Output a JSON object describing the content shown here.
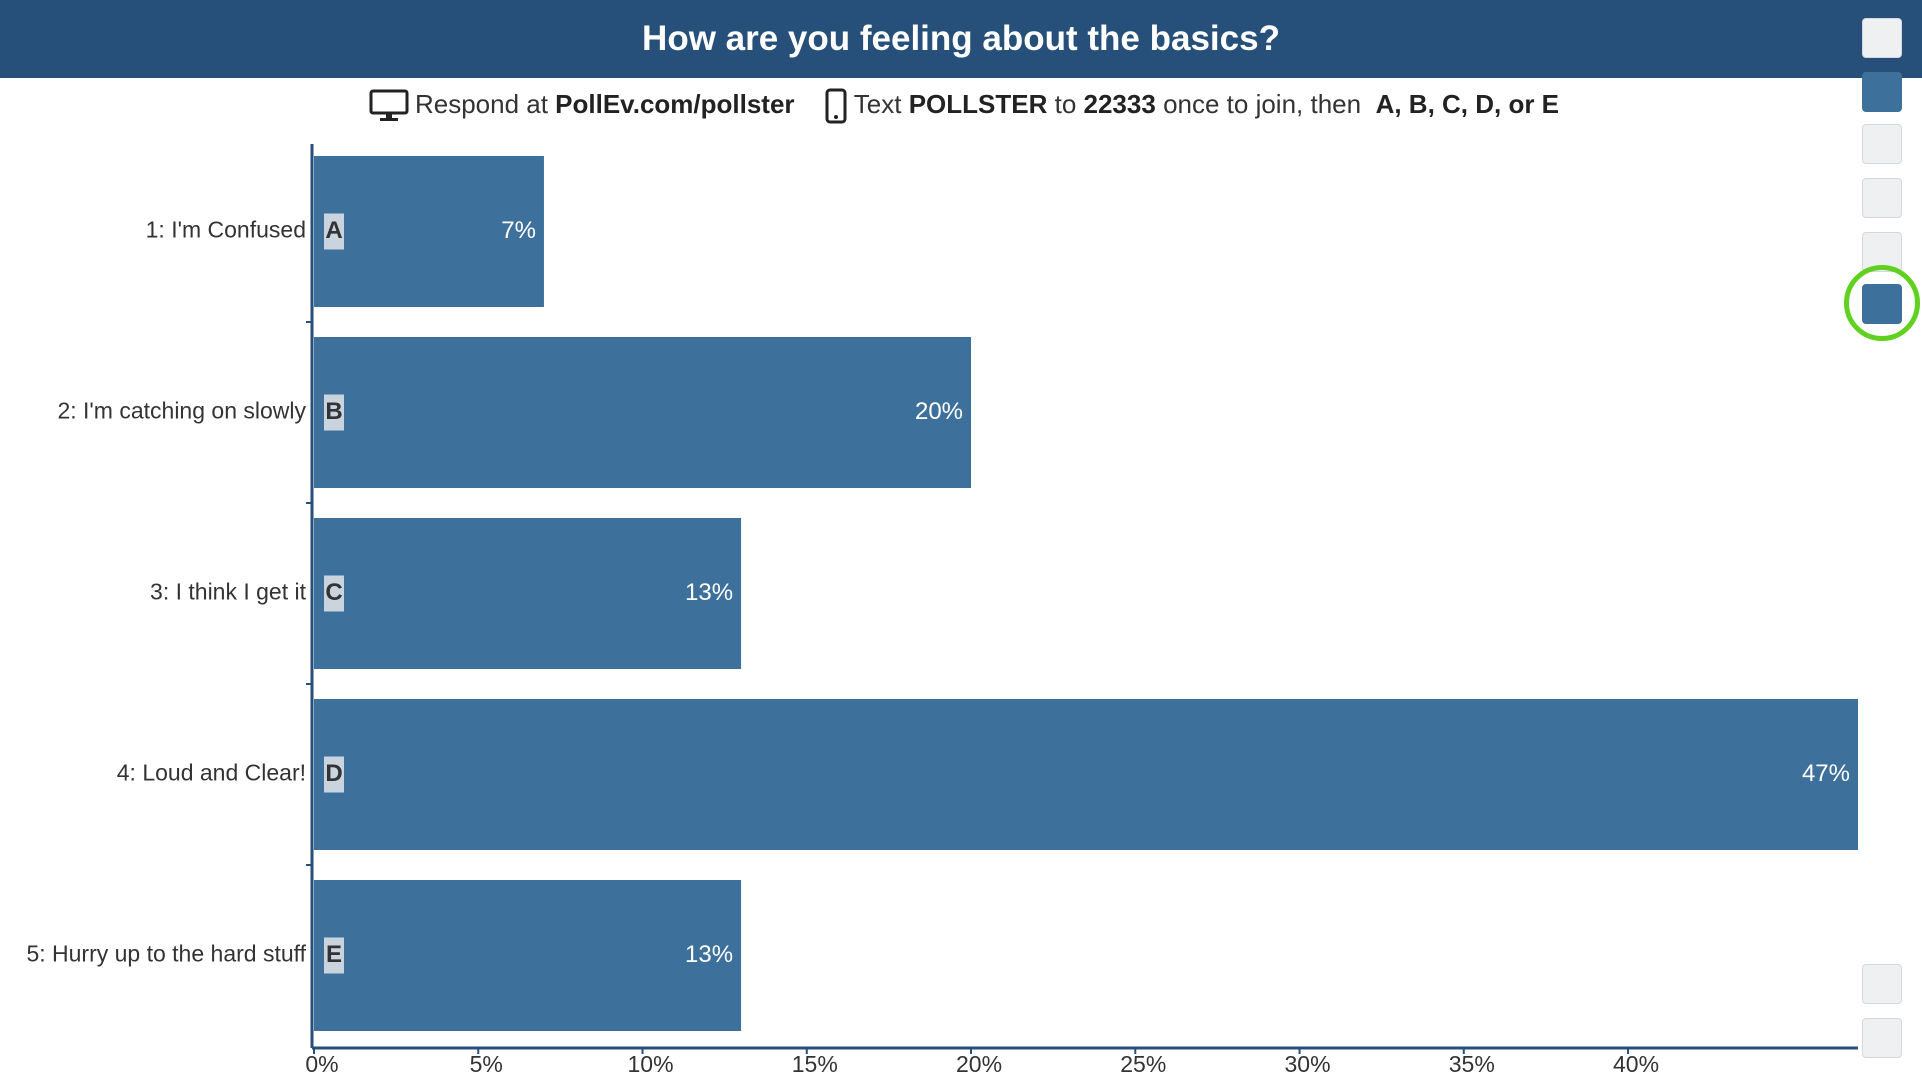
{
  "header": {
    "title": "How are you feeling about the basics?"
  },
  "instructions": {
    "respond": "Respond at",
    "url": "PollEv.com/pollster",
    "text": "Text",
    "keyword": "POLLSTER",
    "to": "to",
    "number": "22333",
    "join": "once to join, then",
    "options": "A, B, C, D, or E"
  },
  "chart_data": {
    "type": "bar",
    "orientation": "horizontal",
    "categories": [
      "1: I'm Confused",
      "2: I'm catching on slowly",
      "3: I think I get it",
      "4: Loud and Clear!",
      "5: Hurry up to the hard stuff"
    ],
    "letters": [
      "A",
      "B",
      "C",
      "D",
      "E"
    ],
    "values": [
      7,
      20,
      13,
      47,
      13
    ],
    "value_labels": [
      "7%",
      "20%",
      "13%",
      "47%",
      "13%"
    ],
    "color": "#3d719b",
    "xlim": [
      0,
      47
    ],
    "xticks": [
      {
        "value": 0,
        "label": "0%"
      },
      {
        "value": 5,
        "label": "5%"
      },
      {
        "value": 10,
        "label": "10%"
      },
      {
        "value": 15,
        "label": "15%"
      },
      {
        "value": 20,
        "label": "20%"
      },
      {
        "value": 25,
        "label": "25%"
      },
      {
        "value": 30,
        "label": "30%"
      },
      {
        "value": 35,
        "label": "35%"
      },
      {
        "value": 40,
        "label": "40%"
      }
    ]
  }
}
